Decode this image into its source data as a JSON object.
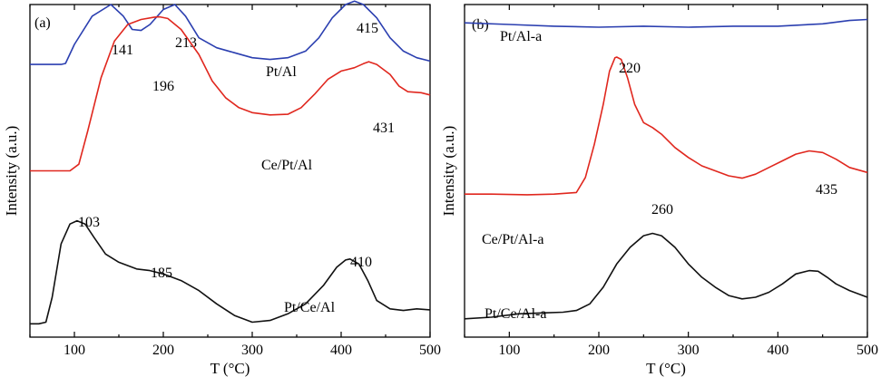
{
  "chart_data": [
    {
      "type": "line",
      "panel_label": "(a)",
      "xlabel": "T (°C)",
      "ylabel": "Intensity (a.u.)",
      "xlim": [
        50,
        500
      ],
      "x_ticks": [
        100,
        200,
        300,
        400,
        500
      ],
      "x_tick_labels": [
        "100",
        "200",
        "300",
        "400",
        "500"
      ],
      "y_ticks_shown": false,
      "grid": false,
      "legend": "none (curves labelled inline)",
      "series": [
        {
          "name": "Pt/Al",
          "color": "#2b3fb0",
          "points": [
            [
              50,
              0.82
            ],
            [
              70,
              0.82
            ],
            [
              85,
              0.82
            ],
            [
              90,
              0.823
            ],
            [
              100,
              0.88
            ],
            [
              120,
              0.965
            ],
            [
              141,
              1.0
            ],
            [
              155,
              0.965
            ],
            [
              165,
              0.925
            ],
            [
              175,
              0.922
            ],
            [
              185,
              0.94
            ],
            [
              200,
              0.985
            ],
            [
              213,
              1.0
            ],
            [
              225,
              0.965
            ],
            [
              240,
              0.9
            ],
            [
              260,
              0.87
            ],
            [
              280,
              0.855
            ],
            [
              300,
              0.84
            ],
            [
              320,
              0.835
            ],
            [
              340,
              0.84
            ],
            [
              360,
              0.86
            ],
            [
              375,
              0.9
            ],
            [
              390,
              0.96
            ],
            [
              405,
              1.0
            ],
            [
              415,
              1.01
            ],
            [
              425,
              1.0
            ],
            [
              440,
              0.96
            ],
            [
              455,
              0.9
            ],
            [
              470,
              0.86
            ],
            [
              485,
              0.84
            ],
            [
              500,
              0.83
            ]
          ],
          "peaks": [
            {
              "x": 141,
              "label": "141"
            },
            {
              "x": 213,
              "label": "213"
            },
            {
              "x": 415,
              "label": "415"
            }
          ]
        },
        {
          "name": "Ce/Pt/Al",
          "color": "#e0271e",
          "points": [
            [
              50,
              0.5
            ],
            [
              80,
              0.5
            ],
            [
              95,
              0.5
            ],
            [
              105,
              0.52
            ],
            [
              115,
              0.62
            ],
            [
              130,
              0.78
            ],
            [
              145,
              0.89
            ],
            [
              160,
              0.94
            ],
            [
              175,
              0.955
            ],
            [
              190,
              0.962
            ],
            [
              196,
              0.963
            ],
            [
              205,
              0.958
            ],
            [
              220,
              0.925
            ],
            [
              240,
              0.85
            ],
            [
              255,
              0.77
            ],
            [
              270,
              0.72
            ],
            [
              285,
              0.69
            ],
            [
              300,
              0.675
            ],
            [
              320,
              0.668
            ],
            [
              340,
              0.67
            ],
            [
              355,
              0.69
            ],
            [
              370,
              0.73
            ],
            [
              385,
              0.775
            ],
            [
              400,
              0.8
            ],
            [
              415,
              0.81
            ],
            [
              425,
              0.822
            ],
            [
              431,
              0.828
            ],
            [
              440,
              0.82
            ],
            [
              455,
              0.79
            ],
            [
              465,
              0.755
            ],
            [
              475,
              0.738
            ],
            [
              490,
              0.735
            ],
            [
              500,
              0.728
            ]
          ],
          "peaks": [
            {
              "x": 196,
              "label": "196"
            },
            {
              "x": 431,
              "label": "431"
            }
          ]
        },
        {
          "name": "Pt/Ce/Al",
          "color": "#111111",
          "points": [
            [
              50,
              0.04
            ],
            [
              60,
              0.04
            ],
            [
              68,
              0.045
            ],
            [
              75,
              0.12
            ],
            [
              85,
              0.28
            ],
            [
              95,
              0.34
            ],
            [
              103,
              0.35
            ],
            [
              112,
              0.34
            ],
            [
              122,
              0.3
            ],
            [
              135,
              0.25
            ],
            [
              150,
              0.225
            ],
            [
              170,
              0.205
            ],
            [
              185,
              0.2
            ],
            [
              200,
              0.19
            ],
            [
              220,
              0.17
            ],
            [
              240,
              0.14
            ],
            [
              260,
              0.1
            ],
            [
              280,
              0.065
            ],
            [
              300,
              0.045
            ],
            [
              320,
              0.05
            ],
            [
              340,
              0.07
            ],
            [
              360,
              0.1
            ],
            [
              380,
              0.155
            ],
            [
              395,
              0.21
            ],
            [
              405,
              0.232
            ],
            [
              410,
              0.235
            ],
            [
              420,
              0.22
            ],
            [
              430,
              0.17
            ],
            [
              440,
              0.11
            ],
            [
              455,
              0.085
            ],
            [
              470,
              0.08
            ],
            [
              485,
              0.085
            ],
            [
              500,
              0.082
            ]
          ],
          "peaks": [
            {
              "x": 103,
              "label": "103"
            },
            {
              "x": 185,
              "label": "185"
            },
            {
              "x": 410,
              "label": "410"
            }
          ]
        }
      ]
    },
    {
      "type": "line",
      "panel_label": "(b)",
      "xlabel": "T (°C)",
      "ylabel": "Intensity (a.u.)",
      "xlim": [
        50,
        500
      ],
      "x_ticks": [
        100,
        200,
        300,
        400,
        500
      ],
      "x_tick_labels": [
        "100",
        "200",
        "300",
        "400",
        "500"
      ],
      "y_ticks_shown": false,
      "grid": false,
      "legend": "none (curves labelled inline)",
      "series": [
        {
          "name": "Pt/Al-a",
          "color": "#2b3fb0",
          "points": [
            [
              50,
              0.945
            ],
            [
              100,
              0.94
            ],
            [
              150,
              0.935
            ],
            [
              200,
              0.932
            ],
            [
              250,
              0.935
            ],
            [
              300,
              0.932
            ],
            [
              350,
              0.935
            ],
            [
              400,
              0.935
            ],
            [
              450,
              0.942
            ],
            [
              480,
              0.952
            ],
            [
              500,
              0.955
            ]
          ],
          "peaks": []
        },
        {
          "name": "Ce/Pt/Al-a",
          "color": "#e0271e",
          "points": [
            [
              50,
              0.43
            ],
            [
              80,
              0.43
            ],
            [
              120,
              0.428
            ],
            [
              150,
              0.43
            ],
            [
              175,
              0.435
            ],
            [
              185,
              0.48
            ],
            [
              195,
              0.58
            ],
            [
              205,
              0.7
            ],
            [
              212,
              0.8
            ],
            [
              218,
              0.84
            ],
            [
              220,
              0.842
            ],
            [
              225,
              0.835
            ],
            [
              232,
              0.78
            ],
            [
              240,
              0.7
            ],
            [
              250,
              0.645
            ],
            [
              260,
              0.63
            ],
            [
              270,
              0.61
            ],
            [
              285,
              0.57
            ],
            [
              300,
              0.54
            ],
            [
              315,
              0.515
            ],
            [
              330,
              0.5
            ],
            [
              345,
              0.485
            ],
            [
              360,
              0.478
            ],
            [
              375,
              0.49
            ],
            [
              390,
              0.51
            ],
            [
              405,
              0.53
            ],
            [
              420,
              0.55
            ],
            [
              435,
              0.56
            ],
            [
              450,
              0.555
            ],
            [
              465,
              0.535
            ],
            [
              480,
              0.51
            ],
            [
              500,
              0.495
            ]
          ],
          "peaks": [
            {
              "x": 220,
              "label": "220"
            },
            {
              "x": 435,
              "label": "435"
            }
          ]
        },
        {
          "name": "Pt/Ce/Al-a",
          "color": "#111111",
          "points": [
            [
              50,
              0.055
            ],
            [
              80,
              0.06
            ],
            [
              110,
              0.07
            ],
            [
              140,
              0.073
            ],
            [
              160,
              0.075
            ],
            [
              175,
              0.08
            ],
            [
              190,
              0.1
            ],
            [
              205,
              0.15
            ],
            [
              220,
              0.22
            ],
            [
              235,
              0.27
            ],
            [
              250,
              0.305
            ],
            [
              260,
              0.312
            ],
            [
              270,
              0.305
            ],
            [
              285,
              0.27
            ],
            [
              300,
              0.22
            ],
            [
              315,
              0.18
            ],
            [
              330,
              0.15
            ],
            [
              345,
              0.125
            ],
            [
              360,
              0.115
            ],
            [
              375,
              0.12
            ],
            [
              390,
              0.135
            ],
            [
              405,
              0.16
            ],
            [
              420,
              0.19
            ],
            [
              435,
              0.2
            ],
            [
              445,
              0.198
            ],
            [
              455,
              0.18
            ],
            [
              465,
              0.16
            ],
            [
              480,
              0.14
            ],
            [
              500,
              0.12
            ]
          ],
          "peaks": [
            {
              "x": 260,
              "label": "260"
            }
          ]
        }
      ]
    }
  ]
}
